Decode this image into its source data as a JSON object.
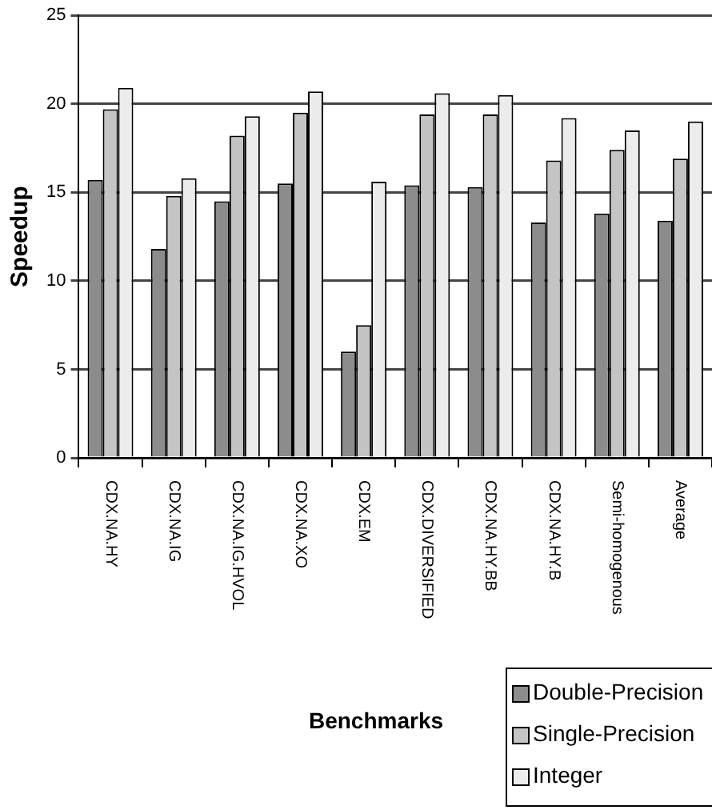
{
  "chart_data": {
    "type": "bar",
    "xlabel": "Benchmarks",
    "ylabel": "Speedup",
    "categories": [
      "CDX.NA.HY",
      "CDX.NA.IG",
      "CDX.NA.IG.HVOL",
      "CDX.NA.XO",
      "CDX.EM",
      "CDX.DIVERSIFIED",
      "CDX.NA.HY.BB",
      "CDX.NA.HY.B",
      "Semi-homogenous",
      "Average"
    ],
    "series": [
      {
        "name": "Double-Precision",
        "color": "#8c8c8c",
        "values": [
          15.7,
          11.8,
          14.5,
          15.5,
          6.0,
          15.4,
          15.3,
          13.3,
          13.8,
          13.4
        ]
      },
      {
        "name": "Single-Precision",
        "color": "#c4c4c4",
        "values": [
          19.7,
          14.8,
          18.2,
          19.5,
          7.5,
          19.4,
          19.4,
          16.8,
          17.4,
          16.9
        ]
      },
      {
        "name": "Integer",
        "color": "#ececec",
        "values": [
          20.9,
          15.8,
          19.3,
          20.7,
          15.6,
          20.6,
          20.5,
          19.2,
          18.5,
          19.0
        ]
      }
    ],
    "ylim": [
      0,
      25
    ],
    "yticks": [
      0,
      5,
      10,
      15,
      20,
      25
    ],
    "grid": "y",
    "legend": "bottom right"
  }
}
